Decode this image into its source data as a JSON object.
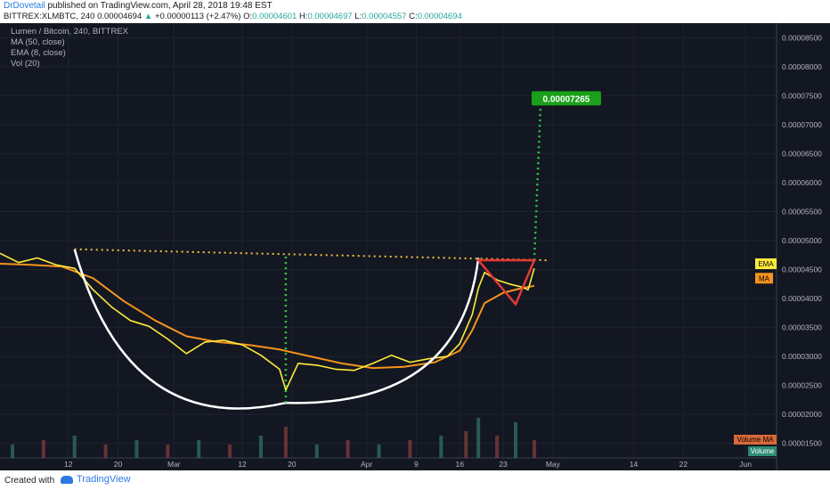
{
  "header": {
    "author": "DrDovetail",
    "published_text": "published on TradingView.com, April 28, 2018 19:48 EST",
    "symbol": "BITTREX:XLMBTC, 240",
    "last": "0.00004694",
    "change_arrow": "▲",
    "change": "+0.00000113 (+2.47%)",
    "o_key": "O:",
    "o": "0.00004601",
    "h_key": "H:",
    "h": "0.00004697",
    "l_key": "L:",
    "l": "0.00004557",
    "c_key": "C:",
    "c": "0.00004694"
  },
  "legend": {
    "title": "Lumen / Bitcoin, 240, BITTREX",
    "ma": "MA (50, close)",
    "ema": "EMA (8, close)",
    "vol": "Vol (20)"
  },
  "badges": {
    "ema": "EMA",
    "ma": "MA",
    "volume_ma": "Volume MA",
    "volume": "Volume",
    "target": "0.00007265"
  },
  "footer": {
    "created_with": "Created with",
    "brand": "TradingView"
  },
  "colors": {
    "background": "#131722",
    "ema": "#ffeb3b",
    "ma": "#f7931e",
    "pattern_cup": "#ffffff",
    "target_line": "#2ecc40",
    "resistance": "#f0c33c",
    "triangle": "#e53935",
    "target_badge": "#1aa01a"
  },
  "chart_data": {
    "type": "line",
    "title": "Lumen / Bitcoin, 240, BITTREX",
    "y_axis": {
      "scale": "linear",
      "ticks": [
        "0.00001500",
        "0.00002000",
        "0.00002500",
        "0.00003000",
        "0.00003500",
        "0.00004000",
        "0.00004500",
        "0.00005000",
        "0.00005500",
        "0.00006000",
        "0.00006500",
        "0.00007000",
        "0.00007500",
        "0.00008000",
        "0.00008500"
      ],
      "range": [
        1.25e-05,
        8.75e-05
      ]
    },
    "x_axis": {
      "ticks": [
        "12",
        "20",
        "Mar",
        "12",
        "20",
        "Apr",
        "9",
        "16",
        "23",
        "May",
        "14",
        "22",
        "Jun"
      ],
      "tick_dates": [
        "2018-02-12",
        "2018-02-20",
        "2018-03-01",
        "2018-03-12",
        "2018-03-20",
        "2018-04-01",
        "2018-04-09",
        "2018-04-16",
        "2018-04-23",
        "2018-05-01",
        "2018-05-14",
        "2018-05-22",
        "2018-06-01"
      ],
      "range": [
        "2018-02-01",
        "2018-06-06"
      ]
    },
    "series": [
      {
        "name": "EMA (8, close)",
        "color": "#ffeb3b",
        "x": [
          "2018-02-01",
          "2018-02-04",
          "2018-02-07",
          "2018-02-10",
          "2018-02-13",
          "2018-02-16",
          "2018-02-19",
          "2018-02-22",
          "2018-02-25",
          "2018-02-28",
          "2018-03-03",
          "2018-03-06",
          "2018-03-09",
          "2018-03-12",
          "2018-03-15",
          "2018-03-18",
          "2018-03-19",
          "2018-03-21",
          "2018-03-24",
          "2018-03-27",
          "2018-03-30",
          "2018-04-02",
          "2018-04-05",
          "2018-04-08",
          "2018-04-11",
          "2018-04-14",
          "2018-04-16",
          "2018-04-18",
          "2018-04-19",
          "2018-04-20",
          "2018-04-22",
          "2018-04-24",
          "2018-04-26",
          "2018-04-27",
          "2018-04-28"
        ],
        "y": [
          4.78e-05,
          4.62e-05,
          4.7e-05,
          4.58e-05,
          4.52e-05,
          4.15e-05,
          3.85e-05,
          3.62e-05,
          3.52e-05,
          3.3e-05,
          3.05e-05,
          3.25e-05,
          3.28e-05,
          3.2e-05,
          3.02e-05,
          2.78e-05,
          2.42e-05,
          2.88e-05,
          2.85e-05,
          2.78e-05,
          2.76e-05,
          2.88e-05,
          3.02e-05,
          2.9e-05,
          2.96e-05,
          3e-05,
          3.22e-05,
          3.72e-05,
          4.18e-05,
          4.45e-05,
          4.32e-05,
          4.25e-05,
          4.2e-05,
          4.15e-05,
          4.52e-05
        ]
      },
      {
        "name": "MA (50, close)",
        "color": "#f7931e",
        "x": [
          "2018-02-01",
          "2018-02-06",
          "2018-02-11",
          "2018-02-16",
          "2018-02-21",
          "2018-02-26",
          "2018-03-03",
          "2018-03-08",
          "2018-03-13",
          "2018-03-18",
          "2018-03-23",
          "2018-03-28",
          "2018-04-02",
          "2018-04-07",
          "2018-04-12",
          "2018-04-16",
          "2018-04-18",
          "2018-04-20",
          "2018-04-23",
          "2018-04-26",
          "2018-04-28"
        ],
        "y": [
          4.6e-05,
          4.58e-05,
          4.55e-05,
          4.35e-05,
          3.95e-05,
          3.62e-05,
          3.35e-05,
          3.25e-05,
          3.2e-05,
          3.12e-05,
          3e-05,
          2.88e-05,
          2.8e-05,
          2.82e-05,
          2.9e-05,
          3.1e-05,
          3.45e-05,
          3.92e-05,
          4.1e-05,
          4.18e-05,
          4.22e-05
        ]
      }
    ],
    "annotations": {
      "cup": {
        "x": [
          "2018-02-13",
          "2018-03-19",
          "2018-04-19"
        ],
        "y": [
          4.85e-05,
          2.2e-05,
          4.7e-05
        ]
      },
      "resistance": {
        "x": [
          "2018-02-13",
          "2018-04-30"
        ],
        "y": [
          4.85e-05,
          4.66e-05
        ]
      },
      "measured_move": {
        "x": [
          "2018-03-19",
          "2018-03-19"
        ],
        "y": [
          2.2e-05,
          4.78e-05
        ]
      },
      "projection": {
        "x": [
          "2018-04-28",
          "2018-04-29"
        ],
        "y": [
          4.66e-05,
          7.3e-05
        ]
      },
      "triangle": {
        "x": [
          "2018-04-19",
          "2018-04-28",
          "2018-04-25"
        ],
        "y": [
          4.66e-05,
          4.66e-05,
          3.9e-05
        ]
      },
      "target_label": "0.00007265"
    },
    "volume": {
      "name": "Vol (20)",
      "x": [
        "2018-02-03",
        "2018-02-08",
        "2018-02-13",
        "2018-02-18",
        "2018-02-23",
        "2018-02-28",
        "2018-03-05",
        "2018-03-10",
        "2018-03-15",
        "2018-03-19",
        "2018-03-24",
        "2018-03-29",
        "2018-04-03",
        "2018-04-08",
        "2018-04-13",
        "2018-04-17",
        "2018-04-19",
        "2018-04-22",
        "2018-04-25",
        "2018-04-28"
      ],
      "values": [
        3,
        4,
        5,
        3,
        4,
        3,
        4,
        3,
        5,
        7,
        3,
        4,
        3,
        4,
        5,
        6,
        9,
        5,
        8,
        4
      ]
    }
  }
}
